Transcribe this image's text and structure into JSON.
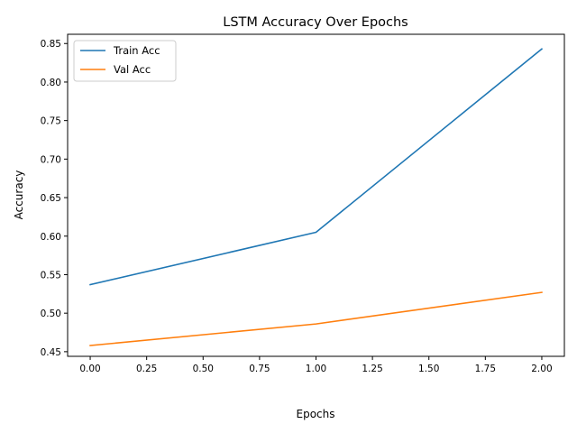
{
  "chart_data": {
    "type": "line",
    "title": "LSTM Accuracy Over Epochs",
    "xlabel": "Epochs",
    "ylabel": "Accuracy",
    "xlim": [
      -0.1,
      2.1
    ],
    "ylim": [
      0.444,
      0.862
    ],
    "xticks": [
      0.0,
      0.25,
      0.5,
      0.75,
      1.0,
      1.25,
      1.5,
      1.75,
      2.0
    ],
    "xtick_labels": [
      "0.00",
      "0.25",
      "0.50",
      "0.75",
      "1.00",
      "1.25",
      "1.50",
      "1.75",
      "2.00"
    ],
    "yticks": [
      0.45,
      0.5,
      0.55,
      0.6,
      0.65,
      0.7,
      0.75,
      0.8,
      0.85
    ],
    "ytick_labels": [
      "0.45",
      "0.50",
      "0.55",
      "0.60",
      "0.65",
      "0.70",
      "0.75",
      "0.80",
      "0.85"
    ],
    "grid": false,
    "legend_position": "top-left",
    "x": [
      0,
      1,
      2
    ],
    "series": [
      {
        "name": "Train Acc",
        "color": "#1f77b4",
        "values": [
          0.537,
          0.605,
          0.843
        ]
      },
      {
        "name": "Val Acc",
        "color": "#ff7f0e",
        "values": [
          0.458,
          0.486,
          0.527
        ]
      }
    ]
  }
}
